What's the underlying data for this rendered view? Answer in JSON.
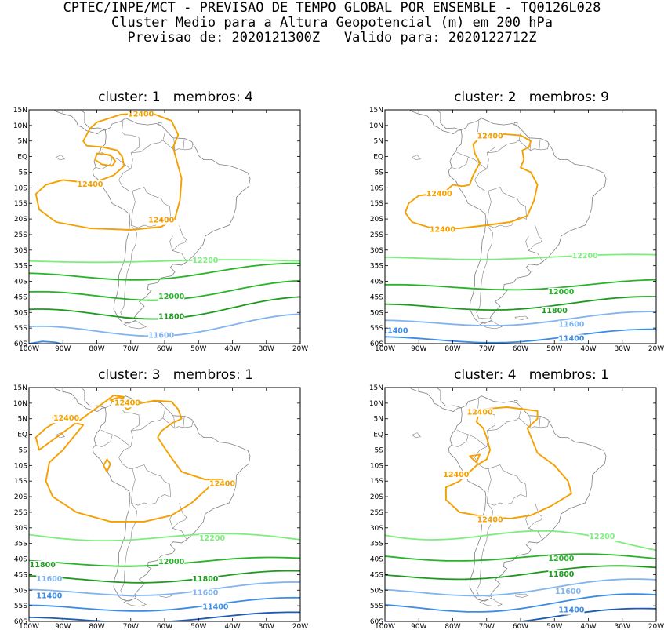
{
  "header": {
    "line1": "CPTEC/INPE/MCT - PREVISAO DE TEMPO GLOBAL POR ENSEMBLE - TQ0126L028",
    "line2": "Cluster Medio para a Altura Geopotencial (m) em 200 hPa",
    "line3": "Previsao de: 2020121300Z   Valido para: 2020122712Z"
  },
  "colors": {
    "c12400": "#f5a000",
    "c12200": "#7ded7d",
    "c12000": "#28b428",
    "c11800": "#1e9b1e",
    "c11600": "#82b4f0",
    "c11400": "#3c8ce6",
    "c11200": "#1e5ab4",
    "land": "#808080"
  },
  "axes": {
    "y_ticks": [
      "15N",
      "10N",
      "5N",
      "EQ",
      "5S",
      "10S",
      "15S",
      "20S",
      "25S",
      "30S",
      "35S",
      "40S",
      "45S",
      "50S",
      "55S",
      "60S"
    ],
    "x_ticks": [
      "100W",
      "90W",
      "80W",
      "70W",
      "60W",
      "50W",
      "40W",
      "30W",
      "20W"
    ]
  },
  "panels": [
    {
      "title": "cluster: 1   membros: 4",
      "labels": [
        {
          "text": "12400",
          "lon": -67,
          "lat": 13.5,
          "level": "c12400"
        },
        {
          "text": "12400",
          "lon": -82,
          "lat": -9,
          "level": "c12400"
        },
        {
          "text": "12400",
          "lon": -61,
          "lat": -20.5,
          "level": "c12400"
        },
        {
          "text": "12200",
          "lon": -48,
          "lat": -33.5,
          "level": "c12200"
        },
        {
          "text": "12000",
          "lon": -58,
          "lat": -45,
          "level": "c12000"
        },
        {
          "text": "11800",
          "lon": -58,
          "lat": -51.5,
          "level": "c11800"
        },
        {
          "text": "11600",
          "lon": -61,
          "lat": -57.5,
          "level": "c11600"
        }
      ]
    },
    {
      "title": "cluster: 2   membros: 9",
      "labels": [
        {
          "text": "12400",
          "lon": -69,
          "lat": 6.5,
          "level": "c12400"
        },
        {
          "text": "12400",
          "lon": -84,
          "lat": -12,
          "level": "c12400"
        },
        {
          "text": "12400",
          "lon": -83,
          "lat": -23.5,
          "level": "c12400"
        },
        {
          "text": "12200",
          "lon": -41,
          "lat": -32,
          "level": "c12200"
        },
        {
          "text": "12000",
          "lon": -48,
          "lat": -43.5,
          "level": "c12000"
        },
        {
          "text": "11800",
          "lon": -50,
          "lat": -49.5,
          "level": "c11800"
        },
        {
          "text": "11600",
          "lon": -45,
          "lat": -54,
          "level": "c11600"
        },
        {
          "text": "11400",
          "lon": -97,
          "lat": -56,
          "level": "c11400"
        },
        {
          "text": "11400",
          "lon": -45,
          "lat": -58.5,
          "level": "c11400"
        }
      ]
    },
    {
      "title": "cluster: 3   membros: 1",
      "labels": [
        {
          "text": "12400",
          "lon": -71,
          "lat": 10,
          "level": "c12400"
        },
        {
          "text": "12400",
          "lon": -89,
          "lat": 5,
          "level": "c12400"
        },
        {
          "text": "12400",
          "lon": -43,
          "lat": -16,
          "level": "c12400"
        },
        {
          "text": "12200",
          "lon": -46,
          "lat": -33.5,
          "level": "c12200"
        },
        {
          "text": "12000",
          "lon": -58,
          "lat": -41,
          "level": "c12000"
        },
        {
          "text": "11800",
          "lon": -96,
          "lat": -42,
          "level": "c11800"
        },
        {
          "text": "11800",
          "lon": -48,
          "lat": -46.5,
          "level": "c11800"
        },
        {
          "text": "11600",
          "lon": -94,
          "lat": -46.5,
          "level": "c11600"
        },
        {
          "text": "11600",
          "lon": -48,
          "lat": -51,
          "level": "c11600"
        },
        {
          "text": "11400",
          "lon": -94,
          "lat": -52,
          "level": "c11400"
        },
        {
          "text": "11400",
          "lon": -45,
          "lat": -55.5,
          "level": "c11400"
        }
      ]
    },
    {
      "title": "cluster: 4   membros: 1",
      "labels": [
        {
          "text": "12400",
          "lon": -72,
          "lat": 7,
          "level": "c12400"
        },
        {
          "text": "12400",
          "lon": -79,
          "lat": -13,
          "level": "c12400"
        },
        {
          "text": "12400",
          "lon": -69,
          "lat": -27.5,
          "level": "c12400"
        },
        {
          "text": "12200",
          "lon": -36,
          "lat": -33,
          "level": "c12200"
        },
        {
          "text": "12000",
          "lon": -48,
          "lat": -40,
          "level": "c12000"
        },
        {
          "text": "11800",
          "lon": -48,
          "lat": -45,
          "level": "c11800"
        },
        {
          "text": "11600",
          "lon": -46,
          "lat": -50.5,
          "level": "c11600"
        },
        {
          "text": "11400",
          "lon": -45,
          "lat": -56.5,
          "level": "c11400"
        }
      ]
    }
  ],
  "chart_data": [
    {
      "type": "contour",
      "title": "cluster: 1   membros: 4",
      "xlim": [
        -100,
        -20
      ],
      "ylim": [
        -60,
        15
      ],
      "levels": [
        12400,
        12200,
        12000,
        11800,
        11600
      ]
    },
    {
      "type": "contour",
      "title": "cluster: 2   membros: 9",
      "xlim": [
        -100,
        -20
      ],
      "ylim": [
        -60,
        15
      ],
      "levels": [
        12400,
        12200,
        12000,
        11800,
        11600,
        11400
      ]
    },
    {
      "type": "contour",
      "title": "cluster: 3   membros: 1",
      "xlim": [
        -100,
        -20
      ],
      "ylim": [
        -60,
        15
      ],
      "levels": [
        12400,
        12200,
        12000,
        11800,
        11600,
        11400
      ]
    },
    {
      "type": "contour",
      "title": "cluster: 4   membros: 1",
      "xlim": [
        -100,
        -20
      ],
      "ylim": [
        -60,
        15
      ],
      "levels": [
        12400,
        12200,
        12000,
        11800,
        11600,
        11400
      ]
    }
  ]
}
